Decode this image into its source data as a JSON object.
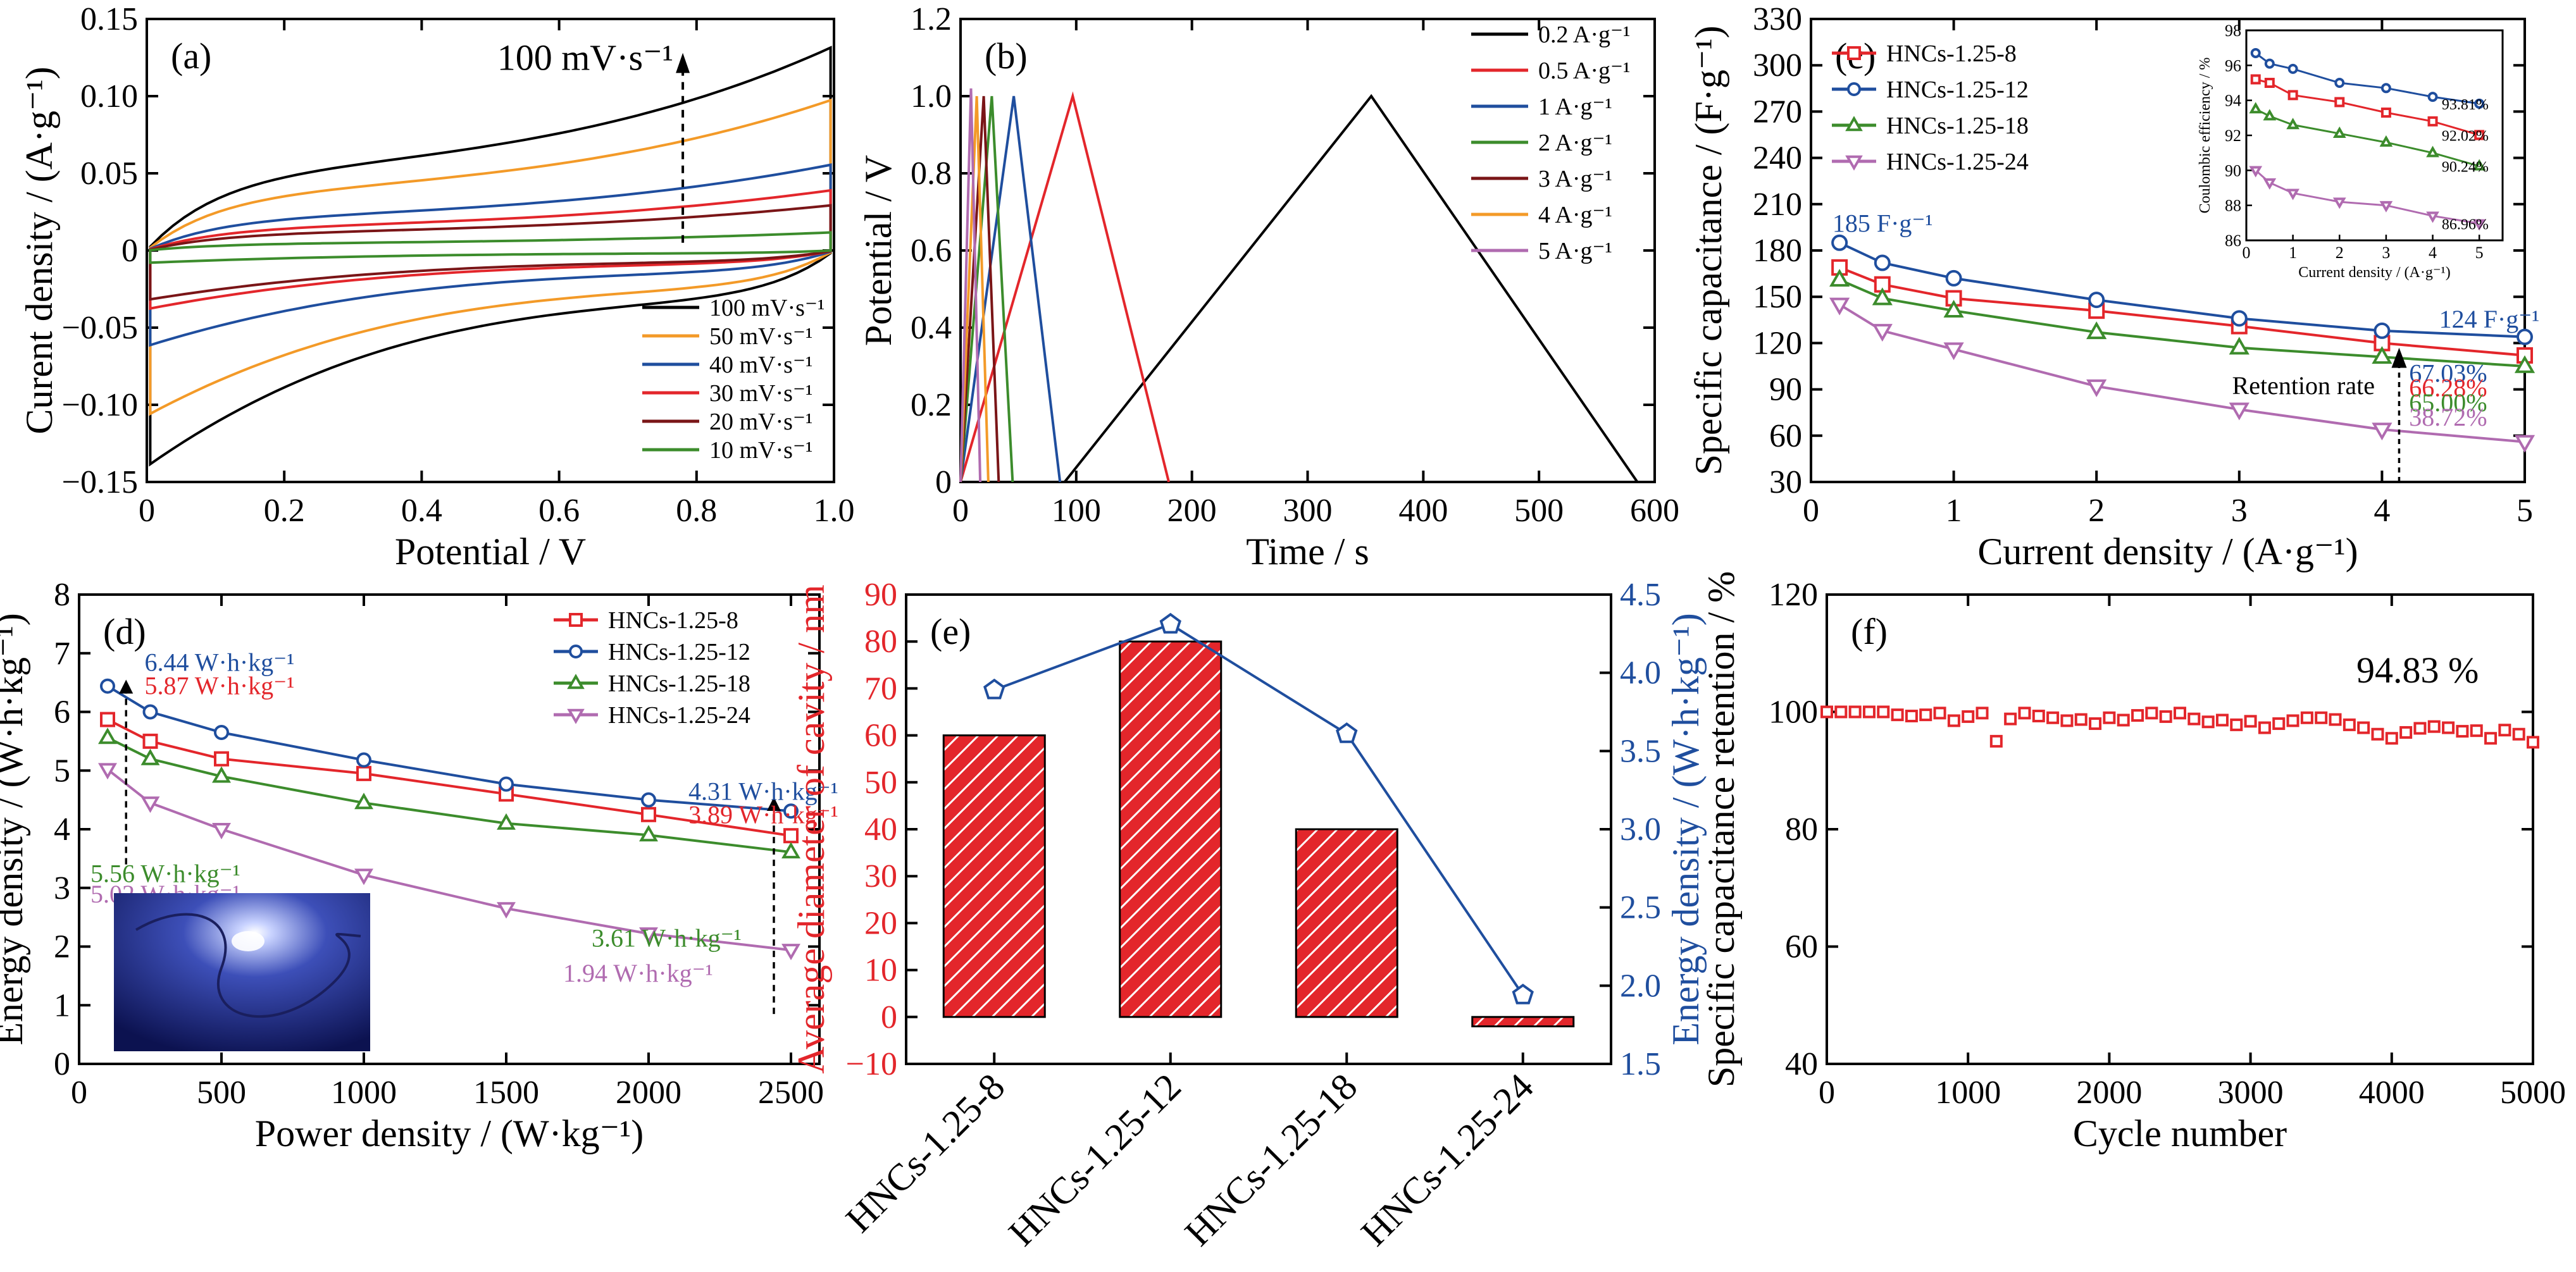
{
  "colors": {
    "black": "#000000",
    "red": "#e3262b",
    "blue": "#1f4e9e",
    "green": "#3c8c2c",
    "orange": "#f39a28",
    "darkred": "#7a1517",
    "purple": "#b06bb0",
    "axis_red": "#e3262b",
    "axis_blue": "#1f4e9e"
  },
  "chart_data": [
    {
      "id": "a",
      "type": "line",
      "panel_label": "(a)",
      "xlabel": "Potential / V",
      "ylabel": "Curent density / (A·g⁻¹)",
      "xlim": [
        0,
        1.0
      ],
      "ylim": [
        -0.15,
        0.15
      ],
      "xticks": [
        "0",
        "0.2",
        "0.4",
        "0.6",
        "0.8",
        "1.0"
      ],
      "yticks": [
        "−0.15",
        "−0.10",
        "−0.05",
        "0",
        "0.05",
        "0.10",
        "0.15"
      ],
      "annotation": "100 mV·s⁻¹",
      "legend_position": "bottom-right",
      "series": [
        {
          "name": "100 mV·s⁻¹",
          "color": "black",
          "i0": 0.135,
          "i1": 0.14
        },
        {
          "name": "50 mV·s⁻¹",
          "color": "orange",
          "i0": 0.1,
          "i1": 0.107
        },
        {
          "name": "40 mV·s⁻¹",
          "color": "blue",
          "i0": 0.057,
          "i1": 0.062
        },
        {
          "name": "30 mV·s⁻¹",
          "color": "red",
          "i0": 0.04,
          "i1": 0.038
        },
        {
          "name": "20 mV·s⁻¹",
          "color": "darkred",
          "i0": 0.03,
          "i1": 0.032
        },
        {
          "name": "10 mV·s⁻¹",
          "color": "green",
          "i0": 0.012,
          "i1": 0.008
        }
      ]
    },
    {
      "id": "b",
      "type": "line",
      "panel_label": "(b)",
      "xlabel": "Time / s",
      "ylabel": "Potential / V",
      "xlim": [
        0,
        600
      ],
      "ylim": [
        0,
        1.2
      ],
      "xticks": [
        "0",
        "100",
        "200",
        "300",
        "400",
        "500",
        "600"
      ],
      "yticks": [
        "0",
        "0.2",
        "0.4",
        "0.6",
        "0.8",
        "1.0",
        "1.2"
      ],
      "legend_position": "top-right",
      "series": [
        {
          "name": "0.2 A·g⁻¹",
          "color": "black",
          "x": [
            90,
            355,
            585
          ],
          "y": [
            0,
            1.0,
            0
          ]
        },
        {
          "name": "0.5 A·g⁻¹",
          "color": "red",
          "x": [
            0,
            97,
            180
          ],
          "y": [
            0,
            1.0,
            0
          ]
        },
        {
          "name": "1 A·g⁻¹",
          "color": "blue",
          "x": [
            0,
            46,
            86
          ],
          "y": [
            0,
            1.0,
            0
          ]
        },
        {
          "name": "2 A·g⁻¹",
          "color": "green",
          "x": [
            0,
            27,
            45
          ],
          "y": [
            0,
            1.0,
            0
          ]
        },
        {
          "name": "3 A·g⁻¹",
          "color": "darkred",
          "x": [
            0,
            20,
            33
          ],
          "y": [
            0,
            1.0,
            0
          ]
        },
        {
          "name": "4 A·g⁻¹",
          "color": "orange",
          "x": [
            0,
            14,
            24
          ],
          "y": [
            0,
            1.0,
            0
          ]
        },
        {
          "name": "5 A·g⁻¹",
          "color": "purple",
          "x": [
            0,
            9,
            17
          ],
          "y": [
            0,
            1.02,
            0
          ]
        }
      ]
    },
    {
      "id": "c",
      "type": "line",
      "panel_label": "(c)",
      "xlabel": "Current density / (A·g⁻¹)",
      "ylabel": "Specific capacitance / (F·g⁻¹)",
      "xlim": [
        0,
        5
      ],
      "ylim": [
        30,
        330
      ],
      "xticks": [
        "0",
        "1",
        "2",
        "3",
        "4",
        "5"
      ],
      "yticks": [
        "30",
        "60",
        "90",
        "120",
        "150",
        "180",
        "210",
        "240",
        "270",
        "300",
        "330"
      ],
      "legend_position": "top-left",
      "annotations": {
        "top": "185 F·g⁻¹",
        "end": "124 F·g⁻¹",
        "retention": "Retention rate"
      },
      "series": [
        {
          "name": "HNCs-1.25-8",
          "color": "red",
          "marker": "square",
          "x": [
            0.2,
            0.5,
            1,
            2,
            3,
            4,
            5
          ],
          "y": [
            169,
            158,
            149,
            141,
            131,
            120,
            112
          ],
          "retention": "66.28%"
        },
        {
          "name": "HNCs-1.25-12",
          "color": "blue",
          "marker": "circle",
          "x": [
            0.2,
            0.5,
            1,
            2,
            3,
            4,
            5
          ],
          "y": [
            185,
            172,
            162,
            148,
            136,
            128,
            124
          ],
          "retention": "67.03%"
        },
        {
          "name": "HNCs-1.25-18",
          "color": "green",
          "marker": "triangle-up",
          "x": [
            0.2,
            0.5,
            1,
            2,
            3,
            4,
            5
          ],
          "y": [
            161,
            149,
            141,
            127,
            117,
            111,
            105
          ],
          "retention": "65.00%"
        },
        {
          "name": "HNCs-1.25-24",
          "color": "purple",
          "marker": "triangle-down",
          "x": [
            0.2,
            0.5,
            1,
            2,
            3,
            4,
            5
          ],
          "y": [
            145,
            128,
            116,
            92,
            77,
            64,
            56
          ],
          "retention": "38.72%"
        }
      ],
      "inset": {
        "xlabel": "Current density / (A·g⁻¹)",
        "ylabel": "Coulombic efficiency / %",
        "xlim": [
          0,
          5.5
        ],
        "ylim": [
          86,
          98
        ],
        "xticks": [
          "0",
          "1",
          "2",
          "3",
          "4",
          "5"
        ],
        "yticks": [
          "86",
          "88",
          "90",
          "92",
          "94",
          "96",
          "98"
        ],
        "series": [
          {
            "color": "blue",
            "marker": "circle",
            "x": [
              0.2,
              0.5,
              1,
              2,
              3,
              4,
              5
            ],
            "y": [
              96.7,
              96.1,
              95.8,
              95.0,
              94.7,
              94.2,
              93.81
            ],
            "label": "93.81%"
          },
          {
            "color": "red",
            "marker": "square",
            "x": [
              0.2,
              0.5,
              1,
              2,
              3,
              4,
              5
            ],
            "y": [
              95.2,
              95.0,
              94.3,
              93.9,
              93.3,
              92.8,
              92.02
            ],
            "label": "92.02%"
          },
          {
            "color": "green",
            "marker": "triangle-up",
            "x": [
              0.2,
              0.5,
              1,
              2,
              3,
              4,
              5
            ],
            "y": [
              93.5,
              93.1,
              92.6,
              92.1,
              91.6,
              91.0,
              90.24
            ],
            "label": "90.24%"
          },
          {
            "color": "purple",
            "marker": "triangle-down",
            "x": [
              0.2,
              0.5,
              1,
              2,
              3,
              4,
              5
            ],
            "y": [
              90.0,
              89.3,
              88.7,
              88.2,
              88.0,
              87.4,
              86.96
            ],
            "label": "86.96%"
          }
        ]
      }
    },
    {
      "id": "d",
      "type": "line",
      "panel_label": "(d)",
      "xlabel": "Power density / (W·kg⁻¹)",
      "ylabel": "Energy density / (W·h·kg⁻¹)",
      "xlim": [
        0,
        2600
      ],
      "ylim": [
        0,
        8
      ],
      "xticks": [
        "0",
        "500",
        "1000",
        "1500",
        "2000",
        "2500"
      ],
      "yticks": [
        "0",
        "1",
        "2",
        "3",
        "4",
        "5",
        "6",
        "7",
        "8"
      ],
      "legend_position": "top-right",
      "series": [
        {
          "name": "HNCs-1.25-8",
          "color": "red",
          "marker": "square",
          "x": [
            100,
            250,
            500,
            1000,
            1500,
            2000,
            2500
          ],
          "y": [
            5.87,
            5.5,
            5.2,
            4.95,
            4.6,
            4.25,
            3.89
          ]
        },
        {
          "name": "HNCs-1.25-12",
          "color": "blue",
          "marker": "circle",
          "x": [
            100,
            250,
            500,
            1000,
            1500,
            2000,
            2500
          ],
          "y": [
            6.44,
            6.0,
            5.65,
            5.18,
            4.77,
            4.5,
            4.31
          ]
        },
        {
          "name": "HNCs-1.25-18",
          "color": "green",
          "marker": "triangle-up",
          "x": [
            100,
            250,
            500,
            1000,
            1500,
            2000,
            2500
          ],
          "y": [
            5.56,
            5.2,
            4.9,
            4.45,
            4.1,
            3.9,
            3.61
          ]
        },
        {
          "name": "HNCs-1.25-24",
          "color": "purple",
          "marker": "triangle-down",
          "x": [
            100,
            250,
            500,
            1000,
            1500,
            2000,
            2500
          ],
          "y": [
            5.02,
            4.45,
            4.0,
            3.22,
            2.65,
            2.22,
            1.94
          ]
        }
      ],
      "value_labels": [
        {
          "text": "6.44 W·h·kg⁻¹",
          "color": "blue"
        },
        {
          "text": "5.87 W·h·kg⁻¹",
          "color": "red"
        },
        {
          "text": "4.31 W·h·kg⁻¹",
          "color": "blue"
        },
        {
          "text": "3.89 W·h·kg⁻¹",
          "color": "red"
        },
        {
          "text": "5.56 W·h·kg⁻¹",
          "color": "green"
        },
        {
          "text": "5.02 W·h·kg⁻¹",
          "color": "purple"
        },
        {
          "text": "3.61 W·h·kg⁻¹",
          "color": "green"
        },
        {
          "text": "1.94 W·h·kg⁻¹",
          "color": "purple"
        }
      ]
    },
    {
      "id": "e",
      "type": "bar",
      "panel_label": "(e)",
      "categories": [
        "HNCs-1.25-8",
        "HNCs-1.25-12",
        "HNCs-1.25-18",
        "HNCs-1.25-24"
      ],
      "ylabel": "Average diameter of cavity / nm",
      "y2label": "Energy density / (W·h·kg⁻¹)",
      "ylim": [
        -10,
        90
      ],
      "y2lim": [
        1.5,
        4.5
      ],
      "yticks": [
        "−10",
        "0",
        "10",
        "20",
        "30",
        "40",
        "50",
        "60",
        "70",
        "80",
        "90"
      ],
      "y2ticks": [
        "1.5",
        "2.0",
        "2.5",
        "3.0",
        "3.5",
        "4.0",
        "4.5"
      ],
      "values": [
        60,
        80,
        40,
        0
      ],
      "series2": {
        "marker": "pentagon",
        "color": "blue",
        "values": [
          3.89,
          4.31,
          3.61,
          1.94
        ]
      }
    },
    {
      "id": "f",
      "type": "scatter",
      "panel_label": "(f)",
      "xlabel": "Cycle number",
      "ylabel": "Specific capacitance retention / %",
      "xlim": [
        0,
        5000
      ],
      "ylim": [
        40,
        120
      ],
      "xticks": [
        "0",
        "1000",
        "2000",
        "3000",
        "4000",
        "5000"
      ],
      "yticks": [
        "40",
        "60",
        "80",
        "100",
        "120"
      ],
      "annotation": "94.83 %",
      "color": "red",
      "marker": "square",
      "x": [
        0,
        100,
        200,
        300,
        400,
        500,
        600,
        700,
        800,
        900,
        1000,
        1100,
        1200,
        1300,
        1400,
        1500,
        1600,
        1700,
        1800,
        1900,
        2000,
        2100,
        2200,
        2300,
        2400,
        2500,
        2600,
        2700,
        2800,
        2900,
        3000,
        3100,
        3200,
        3300,
        3400,
        3500,
        3600,
        3700,
        3800,
        3900,
        4000,
        4100,
        4200,
        4300,
        4400,
        4500,
        4600,
        4700,
        4800,
        4900,
        5000
      ],
      "y": [
        100,
        100,
        100,
        100,
        100,
        99.5,
        99.3,
        99.5,
        99.8,
        98.5,
        99.2,
        99.8,
        95,
        98.8,
        99.8,
        99.3,
        99.0,
        98.5,
        98.7,
        98.0,
        99.0,
        98.6,
        99.4,
        99.8,
        99.2,
        99.8,
        98.8,
        98.3,
        98.6,
        97.8,
        98.4,
        97.3,
        98.0,
        98.5,
        99.0,
        99.0,
        98.7,
        97.8,
        97.3,
        96.2,
        95.5,
        96.5,
        97.2,
        97.5,
        97.3,
        96.7,
        96.8,
        95.5,
        96.9,
        96.2,
        94.83
      ]
    }
  ]
}
